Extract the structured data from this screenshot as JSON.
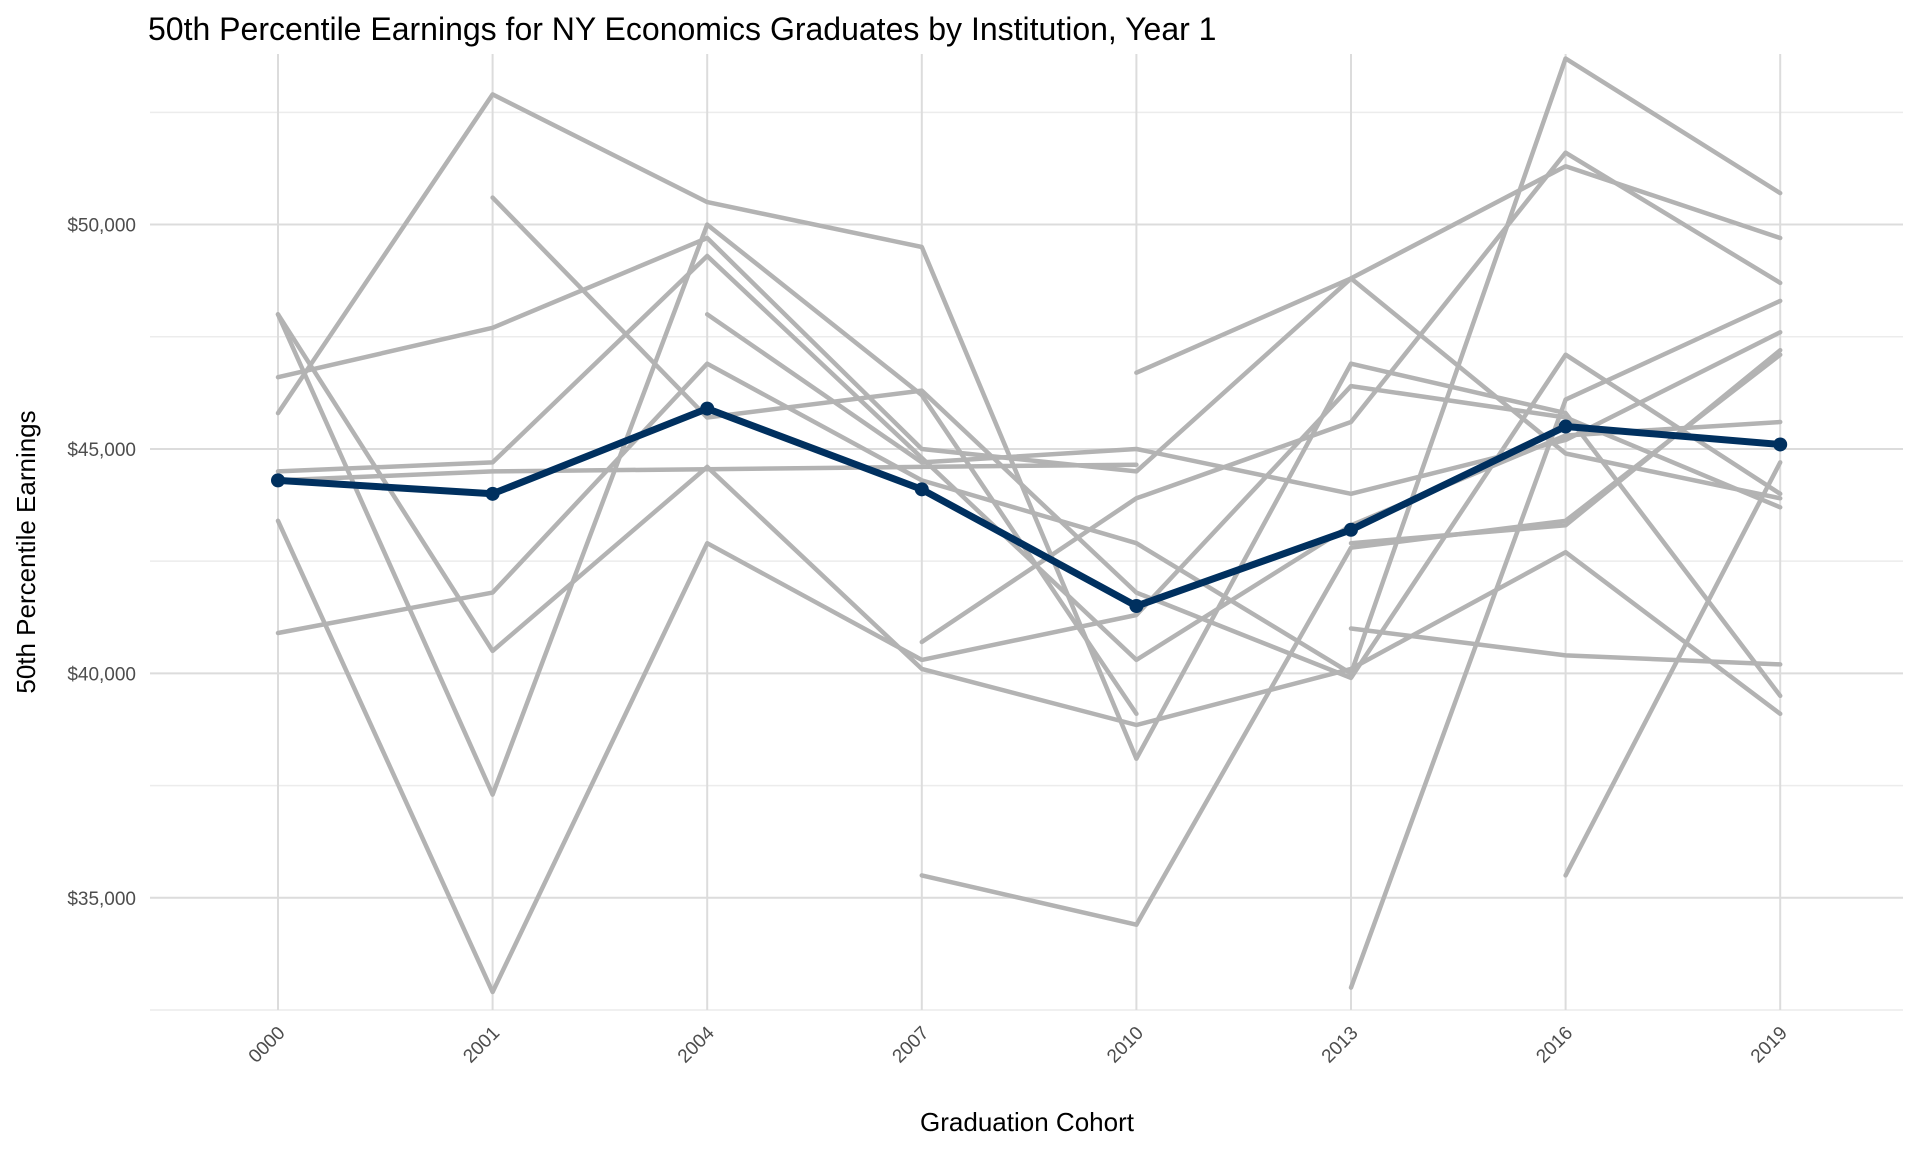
{
  "chart_data": {
    "type": "line",
    "title": "50th Percentile Earnings for NY Economics Graduates by Institution, Year 1",
    "xlabel": "Graduation Cohort",
    "ylabel": "50th Percentile Earnings",
    "x_categories": [
      "0000",
      "2001",
      "2004",
      "2007",
      "2010",
      "2013",
      "2016",
      "2019"
    ],
    "ylim": [
      32500,
      53800
    ],
    "y_ticks": [
      35000,
      40000,
      45000,
      50000
    ],
    "y_tick_labels": [
      "$35,000",
      "$40,000",
      "$45,000",
      "$50,000"
    ],
    "grid": true,
    "legend": "none",
    "colors": {
      "highlight": "#00305f",
      "others": "#b3b3b3"
    },
    "series": [
      {
        "values": [
          44300,
          44500,
          44550,
          44600,
          44650,
          null,
          null,
          null
        ]
      },
      {
        "values": [
          48000,
          37300,
          50000,
          46200,
          39100,
          null,
          null,
          null
        ]
      },
      {
        "values": [
          45800,
          52900,
          50500,
          49500,
          38100,
          46900,
          45800,
          39500
        ]
      },
      {
        "values": [
          46600,
          47700,
          49700,
          45000,
          44500,
          48800,
          51300,
          49700
        ]
      },
      {
        "values": [
          48000,
          40500,
          44600,
          40100,
          38850,
          40100,
          42700,
          39100
        ]
      },
      {
        "values": [
          43400,
          32900,
          42900,
          40300,
          41300,
          46400,
          45700,
          43700
        ]
      },
      {
        "values": [
          40900,
          41800,
          46900,
          44300,
          42900,
          40000,
          53700,
          50700
        ]
      },
      {
        "values": [
          44500,
          44700,
          49300,
          44800,
          40300,
          43300,
          45300,
          45600
        ]
      },
      {
        "values": [
          null,
          50600,
          45700,
          46300,
          41800,
          39900,
          47100,
          44000
        ]
      },
      {
        "values": [
          null,
          null,
          48000,
          44700,
          45000,
          44000,
          45200,
          47600
        ]
      },
      {
        "values": [
          null,
          null,
          null,
          40700,
          43900,
          45600,
          51600,
          48700
        ]
      },
      {
        "values": [
          null,
          null,
          null,
          35500,
          34400,
          42800,
          43400,
          47100
        ]
      },
      {
        "values": [
          null,
          null,
          null,
          null,
          46700,
          48800,
          44900,
          43900
        ]
      },
      {
        "values": [
          null,
          null,
          null,
          null,
          null,
          41000,
          40400,
          40200
        ]
      },
      {
        "values": [
          null,
          null,
          null,
          null,
          null,
          33000,
          46100,
          48300
        ]
      },
      {
        "values": [
          null,
          null,
          null,
          null,
          null,
          42900,
          43300,
          47200
        ]
      },
      {
        "values": [
          null,
          null,
          null,
          null,
          null,
          null,
          35500,
          44700
        ]
      },
      {
        "values": [
          44300,
          44000,
          45900,
          44100,
          41500,
          43200,
          45500,
          45100
        ],
        "highlight": true
      }
    ]
  }
}
